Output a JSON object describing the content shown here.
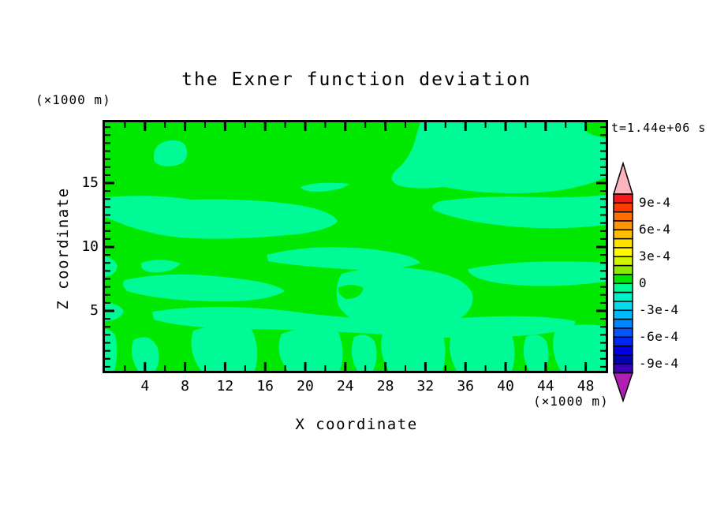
{
  "title": "the Exner function deviation",
  "time_label": "t=1.44e+06 s",
  "axes": {
    "x_label": "X coordinate",
    "x_unit_label": "(×1000 m)",
    "y_label": "Z coordinate",
    "y_unit_label": "(×1000 m)",
    "x_tick_labels": [
      "4",
      "8",
      "12",
      "16",
      "20",
      "24",
      "28",
      "32",
      "36",
      "40",
      "44",
      "48"
    ],
    "y_tick_labels": [
      "5",
      "10",
      "15"
    ]
  },
  "colorbar": {
    "tick_labels": [
      "9e-4",
      "6e-4",
      "3e-4",
      "0",
      "-3e-4",
      "-6e-4",
      "-9e-4"
    ],
    "band_colors_top_to_bottom": [
      "#f51919",
      "#ff3c00",
      "#ff6e00",
      "#ff9600",
      "#ffbe00",
      "#ffe100",
      "#fffa00",
      "#d2f500",
      "#8ceb00",
      "#00e800",
      "#00fa96",
      "#00f0c8",
      "#00dcf0",
      "#00b9ff",
      "#0087ff",
      "#0055ff",
      "#0028f5",
      "#0000e6",
      "#0000b4",
      "#3c00b4"
    ],
    "over_range_color": "#f9b4be",
    "under_range_color": "#b01eb4"
  },
  "plot": {
    "positive_color": "#00e800",
    "negative_color": "#00fa96",
    "frame_color": "#000000",
    "background_color": "#ffffff"
  },
  "chart_data": {
    "type": "heatmap",
    "subtype": "filled-contour",
    "title": "the Exner function deviation",
    "xlabel": "X coordinate (×1000 m)",
    "ylabel": "Z coordinate (×1000 m)",
    "time_stamp": "t=1.44e+06 s",
    "x_range": [
      0,
      50
    ],
    "z_range": [
      0,
      19.5
    ],
    "x_major_ticks": [
      4,
      8,
      12,
      16,
      20,
      24,
      28,
      32,
      36,
      40,
      44,
      48
    ],
    "x_minor_tick_step": 2,
    "y_major_ticks": [
      5,
      10,
      15
    ],
    "contour_interval": 0.0001,
    "colorbar_range": [
      -0.001,
      0.001
    ],
    "colorbar_tick_values": [
      0.0009,
      0.0006,
      0.0003,
      0,
      -0.0003,
      -0.0006,
      -0.0009
    ],
    "visible_levels": [
      {
        "range": "0 to 1e-4",
        "color": "#00e800",
        "description": "bright green regions (slightly positive deviation)"
      },
      {
        "range": "-1e-4 to 0",
        "color": "#00fa96",
        "description": "spring-green regions (slightly negative deviation)"
      }
    ],
    "pattern_note": "field stays within ±1e-4; negative streaks run horizontally through the middle/upper plot and form vertical blobs near the surface"
  }
}
